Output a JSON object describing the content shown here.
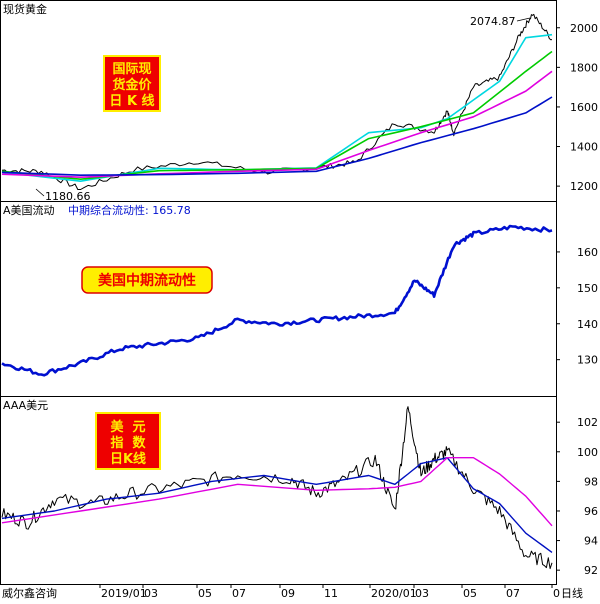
{
  "brand": "威尔鑫咨询",
  "x_axis": {
    "ticks": [
      "2019/01",
      "03",
      "05",
      "07",
      "09",
      "11",
      "2020/01",
      "03",
      "05",
      "07",
      "0"
    ],
    "suffix": "日线"
  },
  "chart_data": [
    {
      "type": "line",
      "panel_title": "现货黄金",
      "overlay": [
        "国际现",
        "货金价",
        "日 K 线"
      ],
      "annotations": {
        "high": "2074.87",
        "low": "1180.66"
      },
      "y_ticks": [
        "2000",
        "1800",
        "1600",
        "1400",
        "1200"
      ],
      "ylim": [
        1140,
        2120
      ],
      "x_range": [
        0,
        420
      ],
      "colors": {
        "price": "#000000",
        "ma_short": "#00d8e0",
        "ma_mid": "#00cc00",
        "ma_long": "#e000e0",
        "ma_longest": "#0010c8"
      },
      "series": [
        {
          "key": "price",
          "x": [
            0,
            30,
            60,
            100,
            150,
            200,
            240,
            270,
            300,
            330,
            340,
            345,
            360,
            380,
            395,
            405,
            420
          ],
          "values": [
            1280,
            1275,
            1185,
            1282,
            1325,
            1270,
            1292,
            1320,
            1520,
            1475,
            1580,
            1468,
            1700,
            1750,
            1960,
            2070,
            1940
          ]
        },
        {
          "key": "ma_short",
          "x": [
            0,
            60,
            120,
            180,
            240,
            280,
            320,
            340,
            380,
            400,
            420
          ],
          "values": [
            1270,
            1225,
            1290,
            1282,
            1292,
            1470,
            1495,
            1540,
            1730,
            1950,
            1965
          ]
        },
        {
          "key": "ma_mid",
          "x": [
            0,
            60,
            120,
            180,
            240,
            280,
            320,
            360,
            400,
            420
          ],
          "values": [
            1275,
            1235,
            1278,
            1283,
            1290,
            1440,
            1500,
            1570,
            1780,
            1880
          ]
        },
        {
          "key": "ma_long",
          "x": [
            0,
            60,
            120,
            180,
            240,
            280,
            320,
            360,
            400,
            420
          ],
          "values": [
            1260,
            1245,
            1262,
            1275,
            1285,
            1380,
            1470,
            1550,
            1680,
            1780
          ]
        },
        {
          "key": "ma_longest",
          "x": [
            0,
            60,
            120,
            180,
            240,
            280,
            320,
            360,
            400,
            420
          ],
          "values": [
            1270,
            1255,
            1258,
            1265,
            1275,
            1340,
            1420,
            1490,
            1570,
            1650
          ]
        }
      ]
    },
    {
      "type": "line",
      "panel_title": "A美国流动",
      "indicator": "中期综合流动性: 165.78",
      "overlay": [
        "美国中期流动性"
      ],
      "y_ticks": [
        "160",
        "150",
        "140",
        "130"
      ],
      "ylim": [
        121,
        170
      ],
      "x_range": [
        0,
        420
      ],
      "colors": {
        "line": "#0010d0"
      },
      "series": [
        {
          "key": "line",
          "x": [
            0,
            30,
            60,
            90,
            120,
            150,
            180,
            210,
            240,
            270,
            300,
            315,
            330,
            345,
            360,
            390,
            420
          ],
          "values": [
            129,
            126,
            129,
            133,
            134.5,
            136,
            141,
            140,
            141,
            142,
            143,
            152,
            148,
            162,
            165,
            167,
            166
          ]
        }
      ]
    },
    {
      "type": "line",
      "panel_title": "AAA美元",
      "overlay": [
        "美  元",
        "指  数",
        "日K线"
      ],
      "y_ticks": [
        "102",
        "100",
        "98",
        "96",
        "94",
        "92"
      ],
      "ylim": [
        91.2,
        103.5
      ],
      "x_range": [
        0,
        420
      ],
      "colors": {
        "price": "#000000",
        "ma_short": "#0010c0",
        "ma_long": "#e000e0"
      },
      "series": [
        {
          "key": "price",
          "x": [
            0,
            20,
            40,
            70,
            100,
            140,
            180,
            220,
            240,
            260,
            285,
            300,
            310,
            320,
            330,
            340,
            360,
            380,
            400,
            420
          ],
          "values": [
            95.8,
            95.2,
            96.8,
            96.5,
            97.2,
            97.8,
            98.5,
            98.2,
            97.2,
            98,
            99.5,
            96,
            103,
            98.5,
            99.5,
            100,
            97.5,
            96,
            93,
            92.5
          ]
        },
        {
          "key": "ma_short",
          "x": [
            0,
            40,
            80,
            120,
            160,
            200,
            240,
            280,
            300,
            320,
            340,
            360,
            380,
            400,
            420
          ],
          "values": [
            95.5,
            96,
            96.8,
            97.2,
            98,
            98.4,
            97.8,
            98.4,
            97.8,
            99.2,
            99.6,
            97.5,
            96.5,
            94.5,
            93.2
          ]
        },
        {
          "key": "ma_long",
          "x": [
            0,
            60,
            120,
            180,
            240,
            280,
            300,
            320,
            340,
            360,
            380,
            400,
            420
          ],
          "values": [
            95.2,
            96,
            96.8,
            97.8,
            97.4,
            97.5,
            97.6,
            98,
            99.6,
            99.6,
            98.5,
            97,
            95
          ]
        }
      ]
    }
  ]
}
